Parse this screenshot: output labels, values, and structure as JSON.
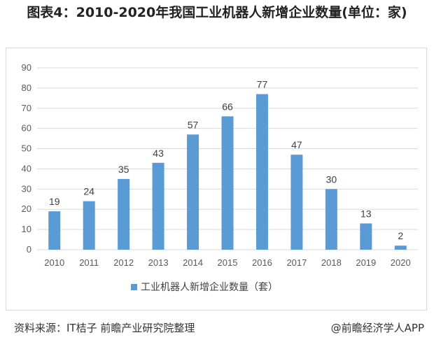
{
  "title": "图表4：2010-2020年我国工业机器人新增企业数量(单位：家)",
  "source": "资料来源：IT桔子 前瞻产业研究院整理",
  "credit": "@前瞻经济学人APP",
  "colors": {
    "bar": "#5b9bd5",
    "grid": "#d9d9d9",
    "text": "#595959"
  },
  "chart_data": {
    "type": "bar",
    "title": "图表4：2010-2020年我国工业机器人新增企业数量(单位：家)",
    "categories": [
      "2010",
      "2011",
      "2012",
      "2013",
      "2014",
      "2015",
      "2016",
      "2017",
      "2018",
      "2019",
      "2020"
    ],
    "series": [
      {
        "name": "工业机器人新增企业数量（套）",
        "values": [
          19,
          24,
          35,
          43,
          57,
          66,
          77,
          47,
          30,
          13,
          2
        ]
      }
    ],
    "ylim": [
      0,
      90
    ],
    "yticks": [
      0,
      10,
      20,
      30,
      40,
      50,
      60,
      70,
      80,
      90
    ],
    "xlabel": "",
    "ylabel": "",
    "grid": true,
    "legend_position": "bottom"
  }
}
